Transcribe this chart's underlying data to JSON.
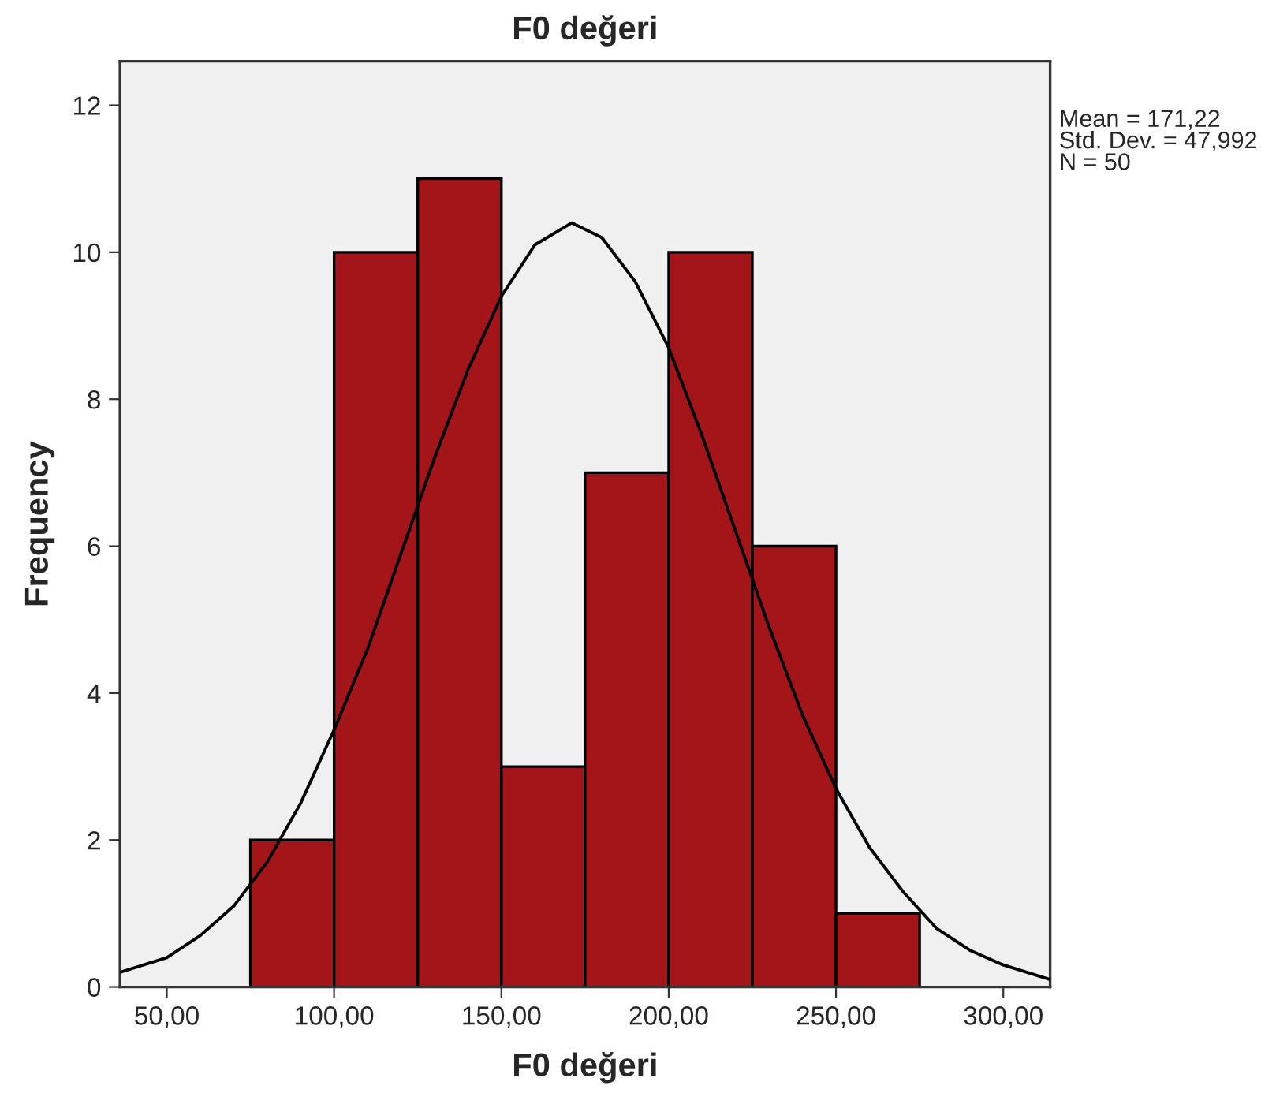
{
  "chart_data": {
    "type": "histogram",
    "title": "F0 değeri",
    "xlabel": "F0 değeri",
    "ylabel": "Frequency",
    "bins": [
      75,
      100,
      125,
      150,
      175,
      200,
      225,
      250,
      275
    ],
    "series": [
      {
        "color": "#a31519",
        "values": [
          2,
          10,
          11,
          3,
          7,
          10,
          6,
          1
        ]
      },
      {
        "type": "line",
        "color": "#000000",
        "x": [
          36,
          50,
          60,
          70,
          80,
          90,
          100,
          110,
          120,
          130,
          140,
          150,
          160,
          171,
          180,
          190,
          200,
          210,
          220,
          230,
          240,
          250,
          260,
          270,
          280,
          290,
          300,
          314
        ],
        "values": [
          0.2,
          0.4,
          0.7,
          1.1,
          1.7,
          2.5,
          3.5,
          4.6,
          5.9,
          7.2,
          8.4,
          9.4,
          10.1,
          10.4,
          10.2,
          9.6,
          8.7,
          7.5,
          6.2,
          4.9,
          3.7,
          2.7,
          1.9,
          1.3,
          0.8,
          0.5,
          0.3,
          0.1
        ]
      }
    ],
    "xlim": [
      36,
      314
    ],
    "ylim": [
      0,
      12.6
    ],
    "xticks": [
      {
        "value": 50,
        "label": "50,00"
      },
      {
        "value": 100,
        "label": "100,00"
      },
      {
        "value": 150,
        "label": "150,00"
      },
      {
        "value": 200,
        "label": "200,00"
      },
      {
        "value": 250,
        "label": "250,00"
      },
      {
        "value": 300,
        "label": "300,00"
      }
    ],
    "yticks": [
      0,
      2,
      4,
      6,
      8,
      10,
      12
    ],
    "grid": false,
    "legend": false,
    "marker": "none",
    "line_style": "solid",
    "annotations": [
      "Mean = 171,22",
      "Std. Dev. = 47,992",
      "N = 50"
    ]
  }
}
